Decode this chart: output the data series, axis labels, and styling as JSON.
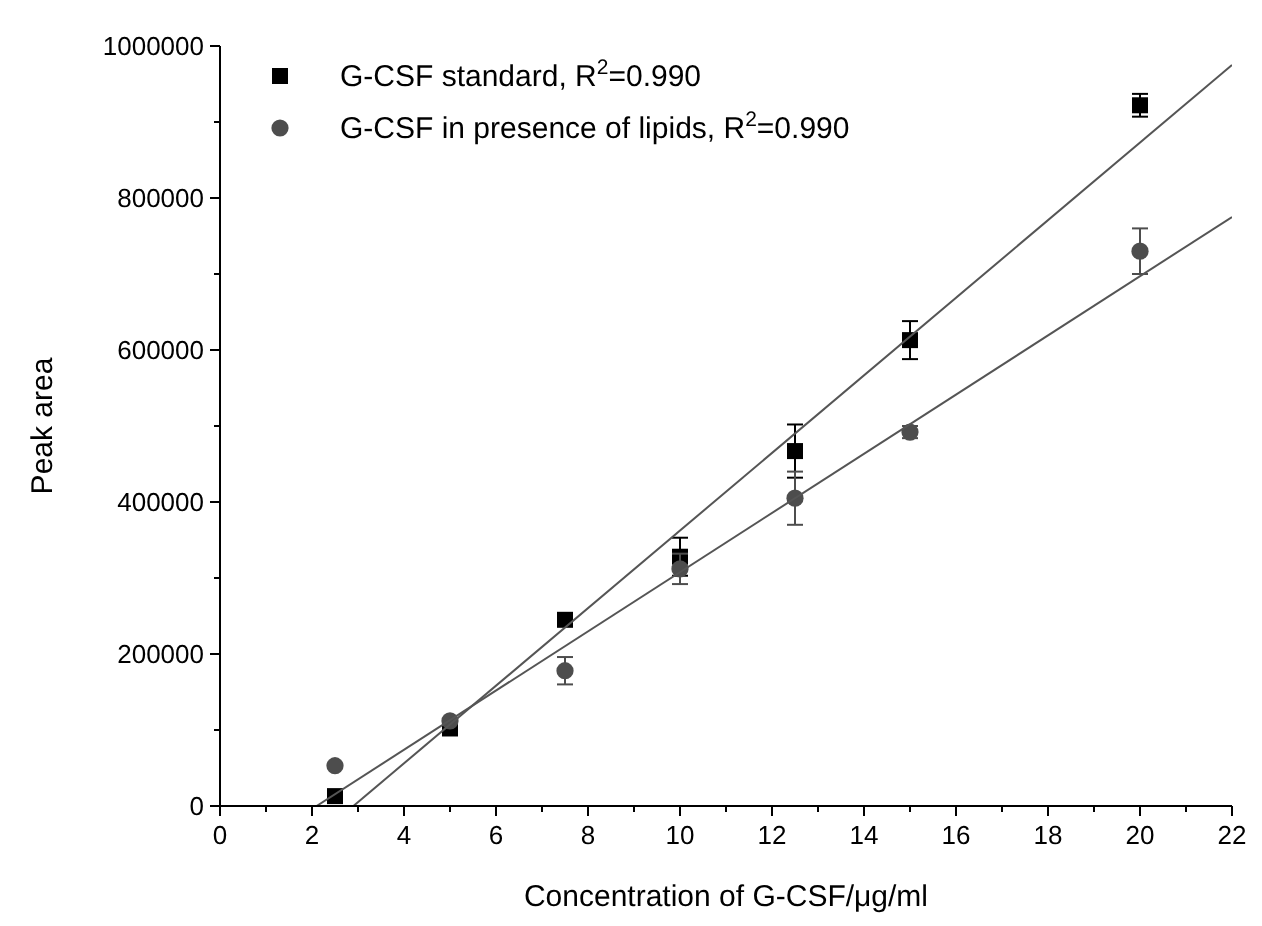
{
  "chart_data": {
    "type": "scatter",
    "xlabel": "Concentration of G-CSF/μg/ml",
    "ylabel": "Peak area",
    "xlim": [
      0,
      22
    ],
    "xticks": [
      0,
      2,
      4,
      6,
      8,
      10,
      12,
      14,
      16,
      18,
      20,
      22
    ],
    "ylim": [
      0,
      1000000
    ],
    "yticks": [
      0,
      200000,
      400000,
      600000,
      800000,
      1000000
    ],
    "legend": "top left",
    "grid": false,
    "series": [
      {
        "name": "G-CSF standard, R$^{2}$=0.990",
        "marker": "square",
        "color": "#000000",
        "x": [
          2.5,
          5,
          7.5,
          10,
          12.5,
          15,
          20
        ],
        "values": [
          13000,
          102000,
          245000,
          328000,
          467000,
          613000,
          922000
        ],
        "errors": [
          null,
          null,
          null,
          25000,
          35000,
          25000,
          15000
        ]
      },
      {
        "name": "G-CSF in presence of lipids, R$^{2}$=0.990",
        "marker": "circle",
        "color": "#4d4d4d",
        "x": [
          2.5,
          5,
          7.5,
          10,
          12.5,
          15,
          20
        ],
        "values": [
          53000,
          112000,
          178000,
          312000,
          405000,
          492000,
          730000
        ],
        "errors": [
          null,
          null,
          18000,
          20000,
          35000,
          8000,
          30000
        ]
      },
      {
        "type": "line",
        "marker": "none",
        "color": "#555555",
        "x": [
          2.9,
          22
        ],
        "values": [
          0,
          975000
        ]
      },
      {
        "type": "line",
        "marker": "none",
        "color": "#555555",
        "x": [
          2.1,
          22
        ],
        "values": [
          0,
          775000
        ]
      }
    ]
  }
}
